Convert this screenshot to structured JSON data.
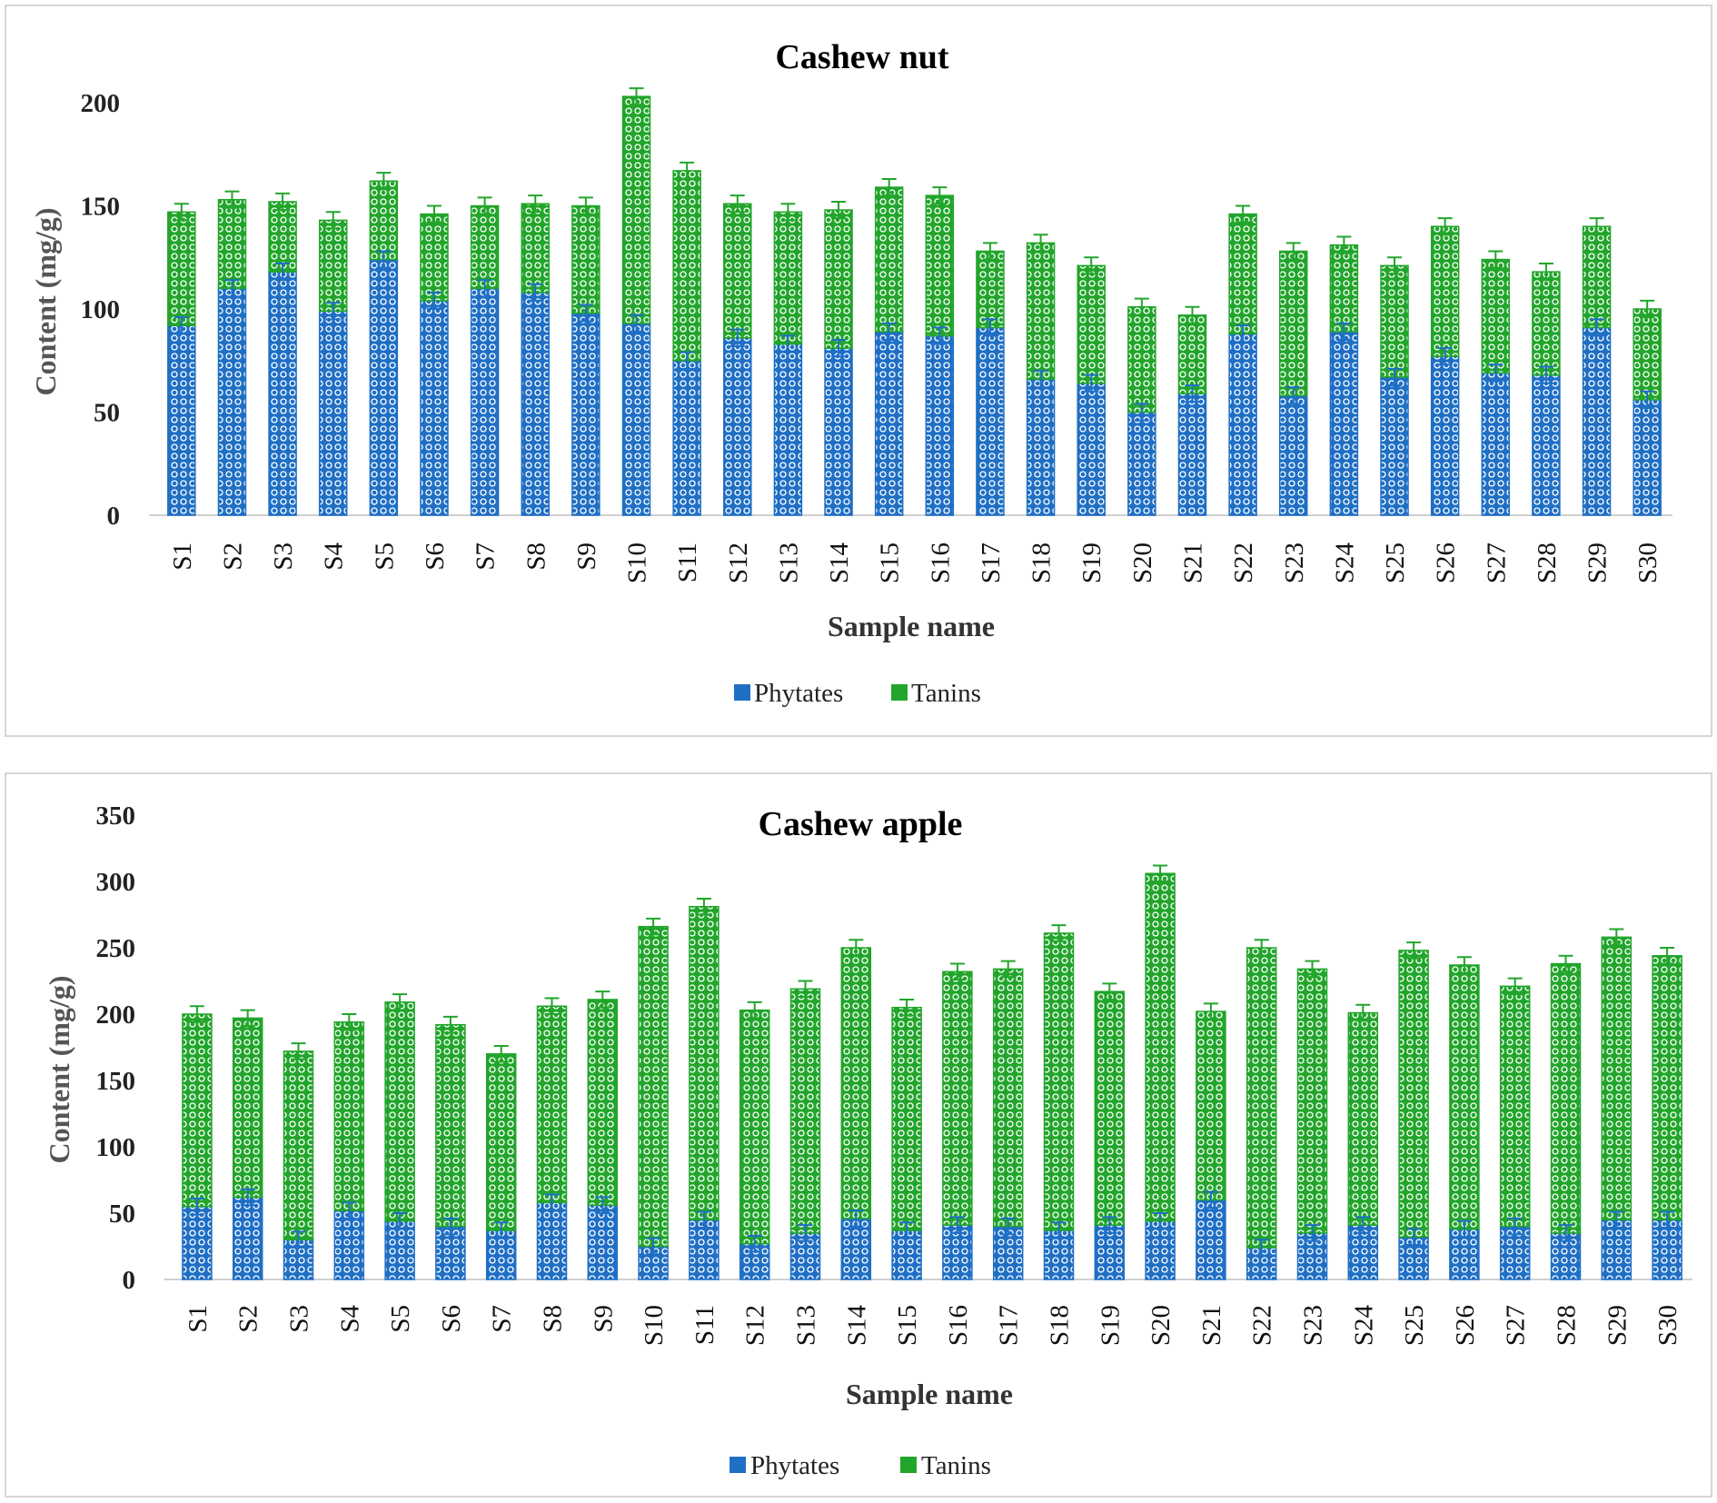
{
  "chart_data": [
    {
      "type": "bar",
      "stacked": true,
      "title": "Cashew nut",
      "xlabel": "Sample name",
      "ylabel": "Content (mg/g)",
      "ylim": [
        0,
        200
      ],
      "yticks": [
        0,
        50,
        100,
        150,
        200
      ],
      "grid": false,
      "legend_position": "bottom-center",
      "categories": [
        "S1",
        "S2",
        "S3",
        "S4",
        "S5",
        "S6",
        "S7",
        "S8",
        "S9",
        "S10",
        "S11",
        "S12",
        "S13",
        "S14",
        "S15",
        "S16",
        "S17",
        "S18",
        "S19",
        "S20",
        "S21",
        "S22",
        "S23",
        "S24",
        "S25",
        "S26",
        "S27",
        "S28",
        "S29",
        "S30"
      ],
      "series": [
        {
          "name": "Phytates",
          "color": "#1f6fc5",
          "values": [
            92,
            110,
            118,
            99,
            124,
            104,
            110,
            108,
            98,
            93,
            75,
            86,
            83,
            81,
            89,
            87,
            91,
            66,
            64,
            50,
            59,
            88,
            58,
            89,
            67,
            77,
            69,
            68,
            91,
            56
          ]
        },
        {
          "name": "Tanins",
          "color": "#22a52b",
          "values": [
            55,
            43,
            34,
            44,
            38,
            42,
            40,
            43,
            52,
            110,
            92,
            65,
            64,
            67,
            70,
            68,
            37,
            66,
            57,
            51,
            38,
            58,
            70,
            42,
            54,
            63,
            55,
            50,
            49,
            44
          ]
        }
      ],
      "error_bar": 4
    },
    {
      "type": "bar",
      "stacked": true,
      "title": "Cashew apple",
      "xlabel": "Sample name",
      "ylabel": "Content (mg/g)",
      "ylim": [
        0,
        350
      ],
      "yticks": [
        0,
        50,
        100,
        150,
        200,
        250,
        300,
        350
      ],
      "grid": false,
      "legend_position": "bottom-center",
      "categories": [
        "S1",
        "S2",
        "S3",
        "S4",
        "S5",
        "S6",
        "S7",
        "S8",
        "S9",
        "S10",
        "S11",
        "S12",
        "S13",
        "S14",
        "S15",
        "S16",
        "S17",
        "S18",
        "S19",
        "S20",
        "S21",
        "S22",
        "S23",
        "S24",
        "S25",
        "S26",
        "S27",
        "S28",
        "S29",
        "S30"
      ],
      "series": [
        {
          "name": "Phytates",
          "color": "#1f6fc5",
          "values": [
            55,
            62,
            30,
            52,
            44,
            40,
            37,
            58,
            56,
            25,
            45,
            27,
            35,
            46,
            37,
            41,
            40,
            37,
            41,
            44,
            60,
            24,
            35,
            41,
            32,
            38,
            40,
            35,
            45,
            45
          ]
        },
        {
          "name": "Tanins",
          "color": "#22a52b",
          "values": [
            145,
            135,
            142,
            142,
            165,
            152,
            133,
            148,
            155,
            241,
            236,
            176,
            184,
            204,
            168,
            191,
            194,
            224,
            176,
            262,
            142,
            226,
            199,
            160,
            216,
            199,
            181,
            203,
            213,
            199
          ]
        }
      ],
      "error_bar": 6
    }
  ]
}
